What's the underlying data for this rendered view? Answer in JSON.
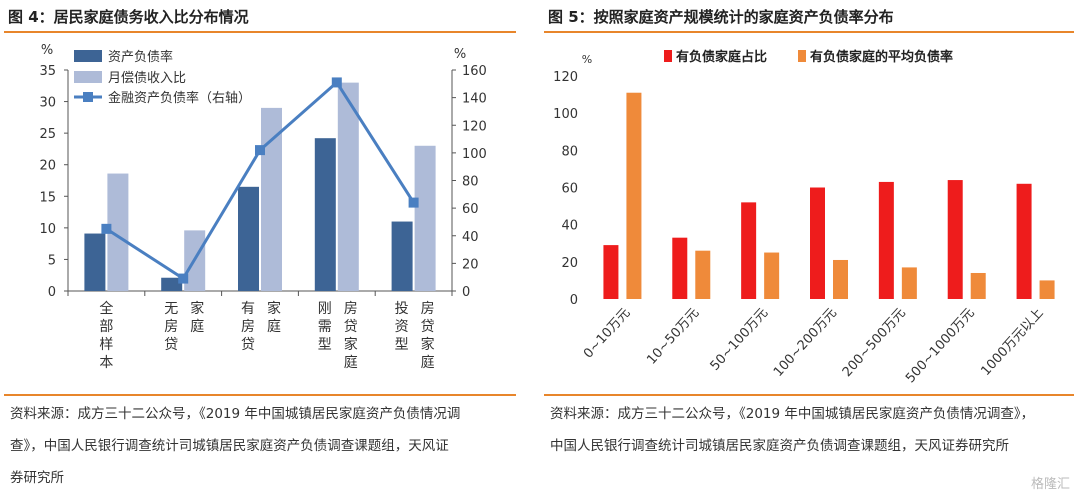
{
  "watermark": "格隆汇",
  "left": {
    "title": "图 4：居民家庭债务收入比分布情况",
    "source_lines": [
      "资料来源：成方三十二公众号，《2019 年中国城镇居民家庭资产负债情况调",
      "查》，中国人民银行调查统计司城镇居民家庭资产负债调查课题组，天风证",
      "券研究所"
    ],
    "colors": {
      "bar1": "#3d6495",
      "bar2": "#aebbd8",
      "line": "#4a7fc1"
    }
  },
  "right": {
    "title": "图 5：按照家庭资产规模统计的家庭资产负债率分布",
    "source_lines": [
      "资料来源：成方三十二公众号，《2019 年中国城镇居民家庭资产负债情况调查》，",
      "中国人民银行调查统计司城镇居民家庭资产负债调查课题组，天风证券研究所"
    ],
    "colors": {
      "s1": "#ee1c1c",
      "s2": "#ef8a3a"
    }
  },
  "chart_data": [
    {
      "type": "bar",
      "categories": [
        "全部样本",
        "无房贷家庭",
        "有房贷家庭",
        "刚需型房贷家庭",
        "投资型房贷家庭"
      ],
      "category_label_columns": [
        [
          "全部样本"
        ],
        [
          "无房贷",
          "家庭"
        ],
        [
          "有房贷",
          "家庭"
        ],
        [
          "刚需型",
          "房贷家庭"
        ],
        [
          "投资型",
          "房贷家庭"
        ]
      ],
      "series": [
        {
          "name": "资产负债率",
          "type": "bar",
          "axis": "left",
          "values": [
            9.1,
            2.1,
            16.5,
            24.2,
            11.0
          ]
        },
        {
          "name": "月偿债收入比",
          "type": "bar",
          "axis": "left",
          "values": [
            18.6,
            9.6,
            29.0,
            33.0,
            23.0
          ]
        },
        {
          "name": "金融资产负债率（右轴）",
          "type": "line",
          "axis": "right",
          "values": [
            45,
            9,
            102,
            151,
            64
          ]
        }
      ],
      "yunit_left": "%",
      "yunit_right": "%",
      "ylim_left": [
        0,
        35
      ],
      "yticks_left": [
        0,
        5,
        10,
        15,
        20,
        25,
        30,
        35
      ],
      "ylim_right": [
        0,
        160
      ],
      "yticks_right": [
        0,
        20,
        40,
        60,
        80,
        100,
        120,
        140,
        160
      ],
      "legend_position": "top-left",
      "grid": false
    },
    {
      "type": "bar",
      "categories": [
        "0~10万元",
        "10~50万元",
        "50~100万元",
        "100~200万元",
        "200~500万元",
        "500~1000万元",
        "1000万元以上"
      ],
      "series": [
        {
          "name": "有负债家庭占比",
          "values": [
            29,
            33,
            52,
            60,
            63,
            64,
            62
          ]
        },
        {
          "name": "有负债家庭的平均负债率",
          "values": [
            111,
            26,
            25,
            21,
            17,
            14,
            10
          ]
        }
      ],
      "yunit": "%",
      "ylim": [
        0,
        120
      ],
      "yticks": [
        0,
        20,
        40,
        60,
        80,
        100,
        120
      ],
      "legend_position": "top",
      "grid": false
    }
  ]
}
